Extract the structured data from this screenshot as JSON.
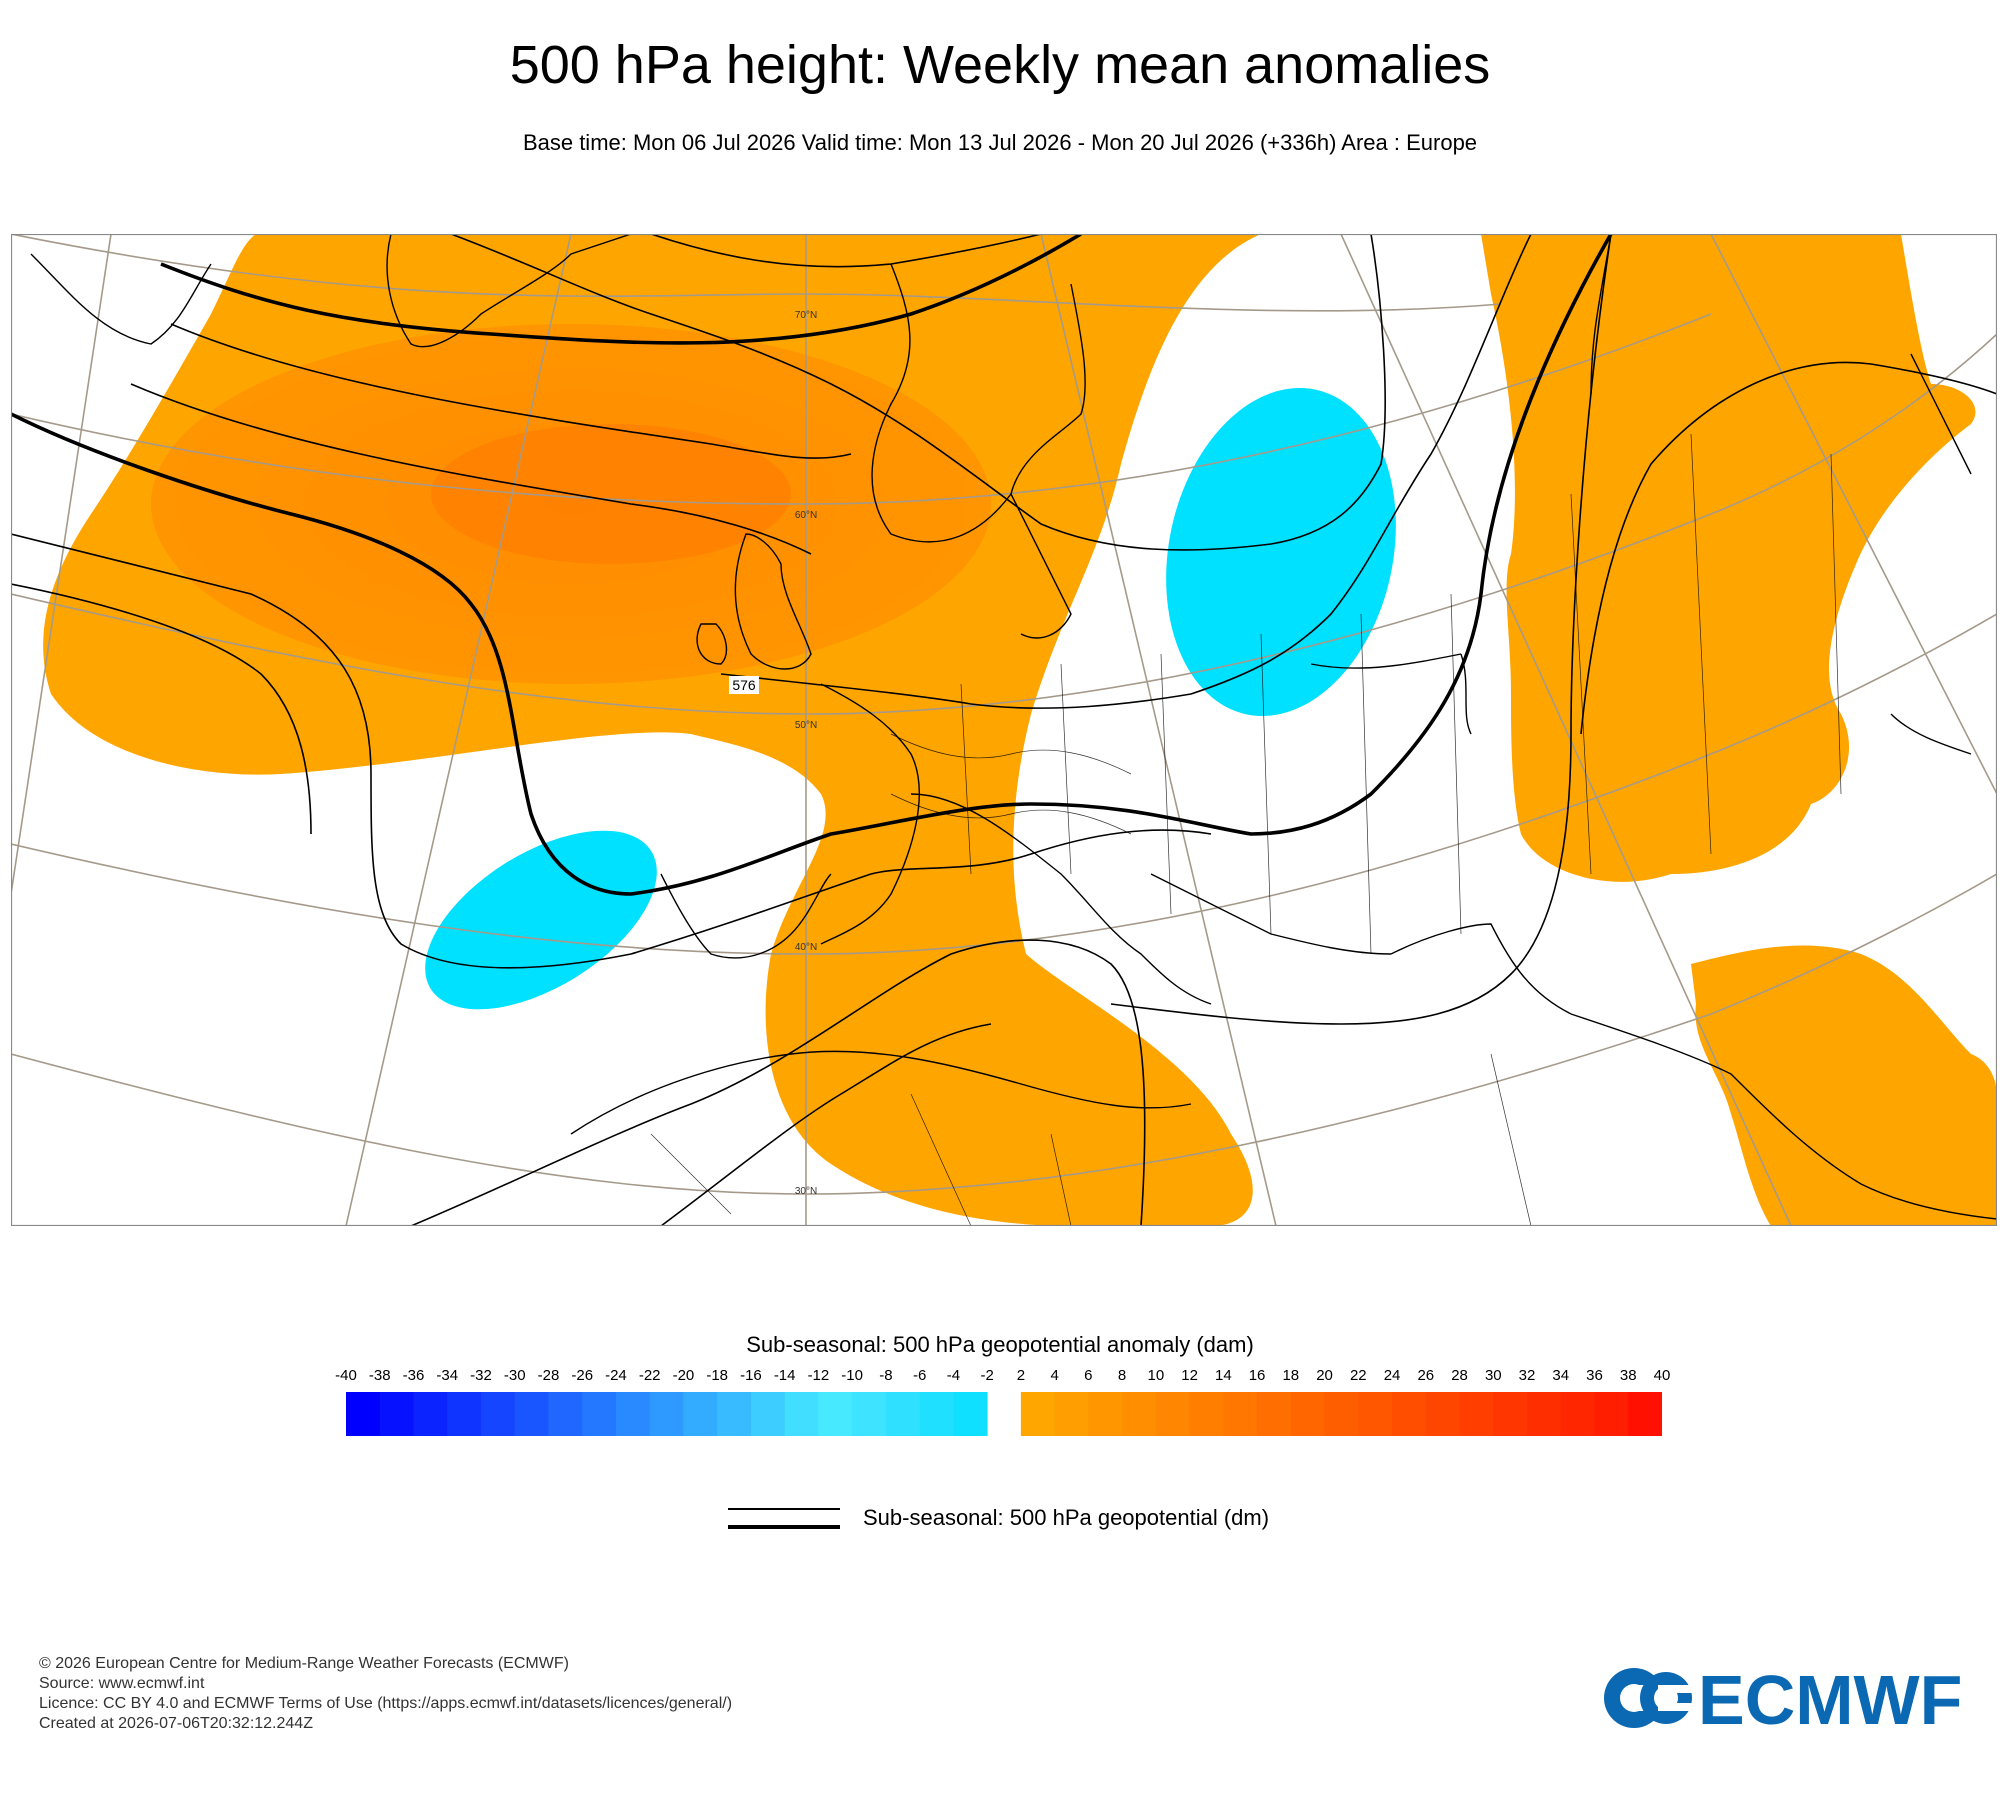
{
  "title": "500 hPa height: Weekly mean anomalies",
  "subtitle": "Base time: Mon 06 Jul 2026 Valid time: Mon 13 Jul 2026 - Mon 20 Jul 2026 (+336h) Area : Europe",
  "map": {
    "latitude_labels": [
      "70°N",
      "60°N",
      "50°N",
      "40°N",
      "30°N"
    ],
    "contour_label": "576",
    "colors": {
      "positive_anomaly": "#ffa500",
      "strong_positive_anomaly": "#ff8c00",
      "negative_anomaly": "#00e0ff",
      "coastline": "#000000",
      "graticule": "#a59a8a"
    }
  },
  "colorbar": {
    "title": "Sub-seasonal: 500 hPa geopotential anomaly (dam)",
    "ticks": [
      "-40",
      "-38",
      "-36",
      "-34",
      "-32",
      "-30",
      "-28",
      "-26",
      "-24",
      "-22",
      "-20",
      "-18",
      "-16",
      "-14",
      "-12",
      "-10",
      "-8",
      "-6",
      "-4",
      "-2",
      "2",
      "4",
      "6",
      "8",
      "10",
      "12",
      "14",
      "16",
      "18",
      "20",
      "22",
      "24",
      "26",
      "28",
      "30",
      "32",
      "34",
      "36",
      "38",
      "40"
    ],
    "negative_colors": [
      "#0000ff",
      "#0612ff",
      "#0b23ff",
      "#1034ff",
      "#1545ff",
      "#1a56ff",
      "#1f67ff",
      "#2478ff",
      "#2989ff",
      "#2e9aff",
      "#33abff",
      "#38bcff",
      "#3dcdff",
      "#42deff",
      "#47e9ff",
      "#3ee4ff",
      "#30e1ff",
      "#20e0ff",
      "#10e0ff"
    ],
    "positive_colors": [
      "#ffa600",
      "#ff9e00",
      "#ff9600",
      "#ff8e00",
      "#ff8600",
      "#ff7e00",
      "#ff7600",
      "#ff6e00",
      "#ff6600",
      "#ff5e00",
      "#ff5600",
      "#ff4e00",
      "#ff4600",
      "#ff3e00",
      "#ff3600",
      "#ff2e00",
      "#ff2600",
      "#ff1e00",
      "#ff1000"
    ]
  },
  "legend": {
    "contour_label": "Sub-seasonal: 500 hPa geopotential (dm)"
  },
  "footer": {
    "copyright": "© 2026 European Centre for Medium-Range Weather Forecasts (ECMWF)",
    "source": "Source: www.ecmwf.int",
    "licence": "Licence: CC BY 4.0 and ECMWF Terms of Use (https://apps.ecmwf.int/datasets/licences/general/)",
    "created": "Created at 2026-07-06T20:32:12.244Z"
  },
  "logo": {
    "text": "ECMWF",
    "color": "#0b68b2"
  }
}
